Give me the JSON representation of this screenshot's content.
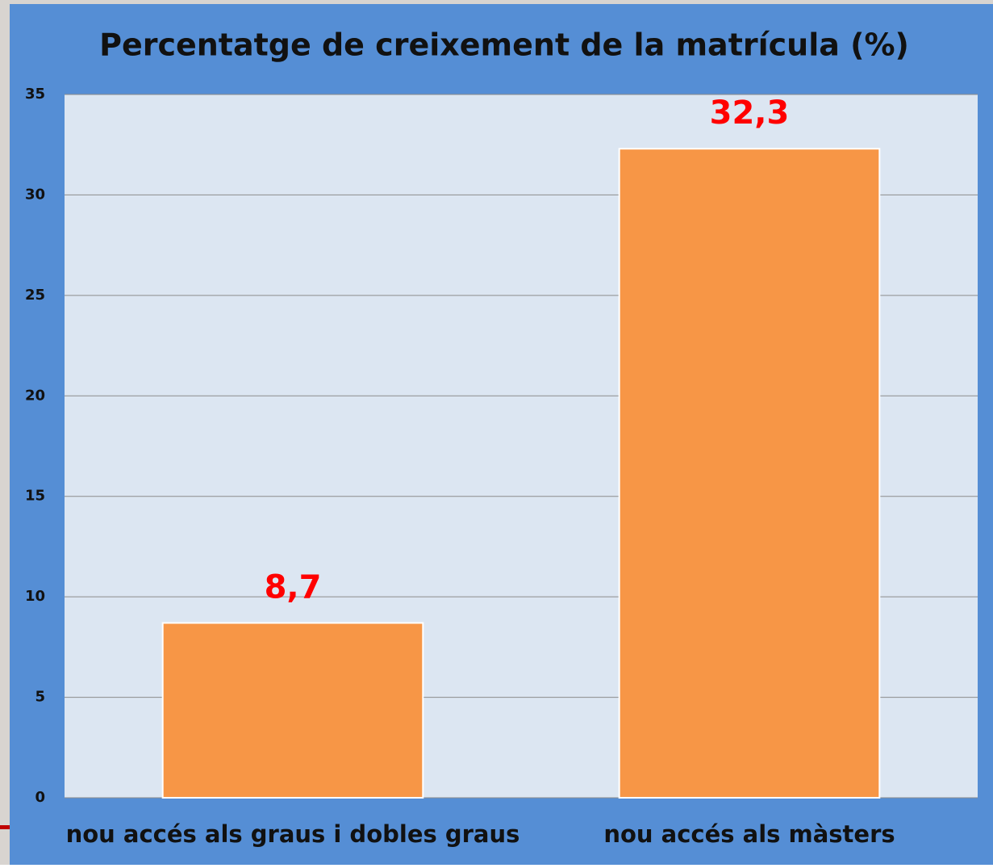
{
  "chart_data": {
    "type": "bar",
    "title": "Percentatge de creixement de la matrícula (%)",
    "categories": [
      "nou accés als graus i dobles graus",
      "nou accés als màsters"
    ],
    "values": [
      8.7,
      32.3
    ],
    "value_labels": [
      "8,7",
      "32,3"
    ],
    "color": "#f79646",
    "ylim": [
      0,
      35
    ],
    "yticks": [
      0,
      5,
      10,
      15,
      20,
      25,
      30,
      35
    ],
    "grid": true
  }
}
